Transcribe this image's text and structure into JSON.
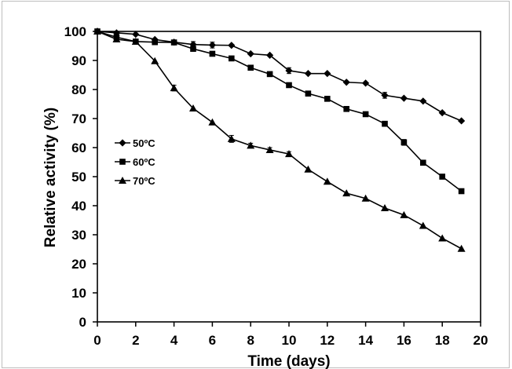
{
  "chart_data": {
    "type": "line",
    "title": "",
    "xlabel": "Time (days)",
    "ylabel": "Relative activity (%)",
    "xlim": [
      0,
      20
    ],
    "ylim": [
      0,
      100
    ],
    "xticks": [
      0,
      2,
      4,
      6,
      8,
      10,
      12,
      14,
      16,
      18,
      20
    ],
    "yticks": [
      0,
      10,
      20,
      30,
      40,
      50,
      60,
      70,
      80,
      90,
      100
    ],
    "grid": false,
    "legend_position": "middle-left",
    "x": [
      0,
      1,
      2,
      3,
      4,
      5,
      6,
      7,
      8,
      9,
      10,
      11,
      12,
      13,
      14,
      15,
      16,
      17,
      18,
      19
    ],
    "series": [
      {
        "name": "50ºC",
        "marker": "diamond",
        "values": [
          100,
          99.5,
          99,
          97.2,
          96.3,
          95.5,
          95.3,
          95.2,
          92.3,
          91.8,
          86.5,
          85.5,
          85.5,
          82.5,
          82.2,
          78,
          77,
          76,
          72,
          69.2
        ],
        "errors": [
          0,
          0,
          0,
          0,
          0,
          1,
          1,
          0,
          0,
          0,
          1,
          0,
          0,
          0,
          0,
          1,
          0,
          0,
          0,
          0
        ]
      },
      {
        "name": "60ºC",
        "marker": "square",
        "values": [
          100,
          98,
          96.5,
          96.3,
          96.2,
          94,
          92.3,
          90.7,
          87.5,
          85.3,
          81.5,
          78.6,
          76.8,
          73.3,
          71.5,
          68.2,
          61.8,
          54.8,
          50,
          45
        ],
        "errors": [
          0,
          0,
          0,
          0,
          0,
          0,
          0,
          0,
          0,
          0,
          0,
          0,
          0,
          0,
          0,
          0,
          1,
          0,
          0,
          0
        ]
      },
      {
        "name": "70ºC",
        "marker": "triangle",
        "values": [
          100,
          97.3,
          96.5,
          89.8,
          80.5,
          73.5,
          68.7,
          63,
          60.7,
          59.2,
          57.8,
          52.5,
          48.3,
          44.3,
          42.5,
          39.2,
          36.8,
          33.1,
          28.8,
          25.2
        ],
        "errors": [
          0,
          0.8,
          0,
          0,
          1,
          0,
          0,
          1.2,
          0.8,
          0.8,
          0.8,
          0,
          0,
          0,
          0,
          0,
          0,
          0,
          0,
          0
        ]
      }
    ]
  }
}
